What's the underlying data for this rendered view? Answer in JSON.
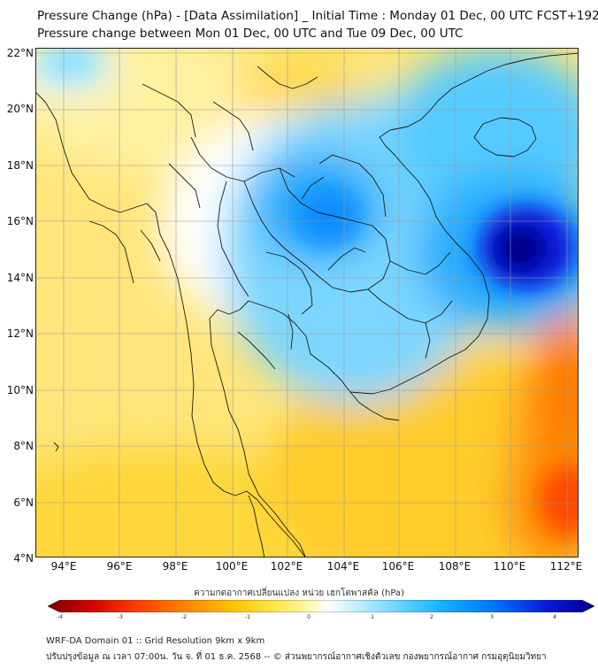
{
  "title_line1": "Pressure Change (hPa) - [Data Assimilation] _ Initial Time : Monday 01 Dec, 00 UTC FCST+192",
  "title_line2": "Pressure change between Mon 01 Dec, 00 UTC and Tue 09 Dec, 00 UTC",
  "lat_labels": [
    "22°N",
    "20°N",
    "18°N",
    "16°N",
    "14°N",
    "12°N",
    "10°N",
    "8°N",
    "6°N",
    "4°N"
  ],
  "lon_labels": [
    "94°E",
    "96°E",
    "98°E",
    "100°E",
    "102°E",
    "104°E",
    "106°E",
    "108°E",
    "110°E",
    "112°E"
  ],
  "colorbar": {
    "title": "ความกดอากาศเปลี่ยนแปลง หน่วย เฮกโตพาสคัล (hPa)",
    "ticks": [
      "-4",
      "-3",
      "-2",
      "-1",
      "0",
      "1",
      "2",
      "3",
      "4"
    ],
    "range": [
      -4,
      4
    ],
    "colors": [
      "#7a0000",
      "#d40000",
      "#ff3a00",
      "#ff8a00",
      "#ffc400",
      "#ffe84a",
      "#fff7b0",
      "#ffffff",
      "#c8f0ff",
      "#6ad4ff",
      "#12b4ff",
      "#0070ff",
      "#0a1ae0",
      "#00008a"
    ]
  },
  "map": {
    "extent_lon": [
      93,
      112.5
    ],
    "extent_lat": [
      4,
      22.3
    ],
    "features": {
      "strong_fall": "#0a1ae0",
      "fall": "#12b4ff",
      "neutral": "#ffffff",
      "rise": "#ffd000",
      "strong_rise": "#ff3a00"
    }
  },
  "footer_line1": "WRF-DA Domain 01 :: Grid Resolution 9km x 9km",
  "footer_line2": "ปรับปรุงข้อมูล ณ เวลา 07:00น. วัน จ. ที่ 01 ธ.ค. 2568 -- © ส่วนพยากรณ์อากาศเชิงตัวเลข กองพยากรณ์อากาศ กรมอุตุนิยมวิทยา"
}
